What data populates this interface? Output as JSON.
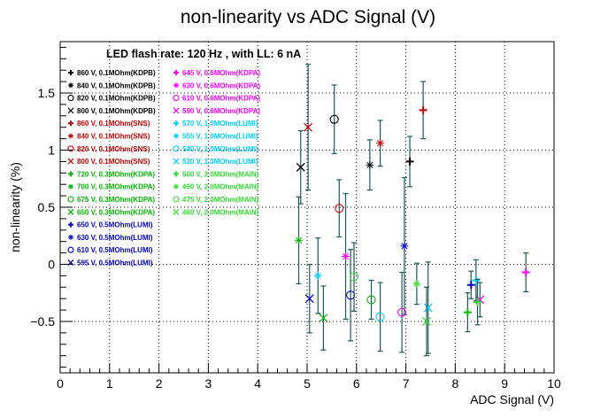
{
  "chart_data": {
    "type": "scatter",
    "title": "non-linearity vs ADC Signal (V)",
    "xlabel": "ADC Signal (V)",
    "ylabel": "non-linearity (%)",
    "xlim": [
      0,
      10
    ],
    "ylim": [
      -0.95,
      1.95
    ],
    "x_ticks": [
      0,
      1,
      2,
      3,
      4,
      5,
      6,
      7,
      8,
      9,
      10
    ],
    "y_ticks": [
      -0.5,
      0,
      0.5,
      1,
      1.5
    ],
    "y_tick_labels": [
      "−0.5",
      "0",
      "0.5",
      "1",
      "1.5"
    ],
    "grid": true,
    "annotation": "LED flash rate: 120 Hz , with LL: 6 nA",
    "legend_placement": "top-left",
    "series": [
      {
        "name": "860 V, 0.1MOhm(KDPB)",
        "marker": "+",
        "color": "#000000",
        "points": [
          {
            "x": 7.08,
            "y": 0.9,
            "err": 0.22
          }
        ]
      },
      {
        "name": "840 V, 0.1MOhm(KDPB)",
        "marker": "*",
        "color": "#000000",
        "points": [
          {
            "x": 6.27,
            "y": 0.87,
            "err": 0.22
          }
        ]
      },
      {
        "name": "820 V, 0.1MOhm(KDPB)",
        "marker": "o",
        "color": "#000000",
        "points": [
          {
            "x": 5.55,
            "y": 1.27,
            "err": 0.3
          }
        ]
      },
      {
        "name": "800 V, 0.1MOhm(KDPB)",
        "marker": "x",
        "color": "#000000",
        "points": [
          {
            "x": 4.87,
            "y": 0.85,
            "err": 0.32
          }
        ]
      },
      {
        "name": "860 V, 0.1MOhm(SNS)",
        "marker": "+",
        "color": "#cc0000",
        "points": [
          {
            "x": 7.35,
            "y": 1.35,
            "err": 0.25
          }
        ]
      },
      {
        "name": "840 V, 0.1MOhm(SNS)",
        "marker": "*",
        "color": "#cc0000",
        "points": [
          {
            "x": 6.48,
            "y": 1.06,
            "err": 0.2
          }
        ]
      },
      {
        "name": "820 V, 0.1MOhm(SNS)",
        "marker": "o",
        "color": "#cc0000",
        "points": [
          {
            "x": 5.65,
            "y": 0.49,
            "err": 0.25
          }
        ]
      },
      {
        "name": "800 V, 0.1MOhm(SNS)",
        "marker": "x",
        "color": "#cc0000",
        "points": [
          {
            "x": 5.02,
            "y": 1.2,
            "err": 0.55
          }
        ]
      },
      {
        "name": "720 V, 0.3MOhm(KDPA)",
        "marker": "+",
        "color": "#00bb00",
        "points": [
          {
            "x": 8.25,
            "y": -0.42,
            "err": 0.17
          }
        ]
      },
      {
        "name": "700 V, 0.3MOhm(KDPA)",
        "marker": "*",
        "color": "#00bb00",
        "points": [
          {
            "x": 4.83,
            "y": 0.21,
            "err": 0.38
          }
        ]
      },
      {
        "name": "675 V, 0.3MOhm(KDPA)",
        "marker": "o",
        "color": "#00bb00",
        "points": [
          {
            "x": 6.3,
            "y": -0.31,
            "err": 0.17
          }
        ]
      },
      {
        "name": "650 V, 0.3MOhm(KDPA)",
        "marker": "x",
        "color": "#00bb00",
        "points": [
          {
            "x": 5.33,
            "y": -0.47,
            "err": 0.28
          }
        ]
      },
      {
        "name": "650 V, 0.5MOhm(LUMI)",
        "marker": "+",
        "color": "#0000cc",
        "points": [
          {
            "x": 8.32,
            "y": -0.18,
            "err": 0.12
          }
        ]
      },
      {
        "name": "630 V, 0.5MOhm(LUMI)",
        "marker": "*",
        "color": "#0000cc",
        "points": [
          {
            "x": 6.97,
            "y": 0.16,
            "err": 0.6
          }
        ]
      },
      {
        "name": "610 V, 0.5MOhm(LUMI)",
        "marker": "o",
        "color": "#0000cc",
        "points": [
          {
            "x": 5.88,
            "y": -0.27,
            "err": 0.4
          }
        ]
      },
      {
        "name": "595 V, 0.5MOhm(LUMI)",
        "marker": "x",
        "color": "#0000cc",
        "points": [
          {
            "x": 5.05,
            "y": -0.3,
            "err": 0.3
          }
        ]
      },
      {
        "name": "645 V, 0.6MOhm(KDPA)",
        "marker": "+",
        "color": "#ff00ff",
        "points": [
          {
            "x": 9.43,
            "y": -0.07,
            "err": 0.17
          }
        ]
      },
      {
        "name": "630 V, 0.6MOhm(KDPA)",
        "marker": "*",
        "color": "#ff00ff",
        "points": [
          {
            "x": 5.78,
            "y": 0.07,
            "err": 0.55
          }
        ]
      },
      {
        "name": "610 V, 0.6MOhm(KDPA)",
        "marker": "o",
        "color": "#ff00ff",
        "points": [
          {
            "x": 6.92,
            "y": -0.42,
            "err": 0.35
          }
        ]
      },
      {
        "name": "590 V, 0.6MOhm(KDPA)",
        "marker": "x",
        "color": "#ff00ff",
        "points": [
          {
            "x": 8.5,
            "y": -0.31,
            "err": 0.15
          }
        ]
      },
      {
        "name": "570 V, 1.0MOhm(LUMI)",
        "marker": "+",
        "color": "#00d0ff",
        "points": [
          {
            "x": 8.42,
            "y": -0.14,
            "err": 0.18
          }
        ]
      },
      {
        "name": "555 V, 1.0MOhm(LUMI)",
        "marker": "*",
        "color": "#00d0ff",
        "points": [
          {
            "x": 5.22,
            "y": -0.1,
            "err": 0.33
          }
        ]
      },
      {
        "name": "540 V, 1.0MOhm(LUMI)",
        "marker": "o",
        "color": "#00d0ff",
        "points": [
          {
            "x": 6.48,
            "y": -0.46,
            "err": 0.3
          }
        ]
      },
      {
        "name": "520 V, 1.0MOhm(LUMI)",
        "marker": "x",
        "color": "#00d0ff",
        "points": [
          {
            "x": 7.45,
            "y": -0.38,
            "err": 0.4
          }
        ]
      },
      {
        "name": "500 V, 2.0MOhm(MAIN)",
        "marker": "+",
        "color": "#33dd33",
        "points": [
          {
            "x": 8.45,
            "y": -0.33,
            "err": 0.2
          }
        ]
      },
      {
        "name": "490 V, 2.0MOhm(MAIN)",
        "marker": "*",
        "color": "#33dd33",
        "points": [
          {
            "x": 7.22,
            "y": -0.17,
            "err": 0.18
          }
        ]
      },
      {
        "name": "475 V, 2.0MOhm(MAIN)",
        "marker": "o",
        "color": "#33dd33",
        "points": [
          {
            "x": 5.95,
            "y": -0.11,
            "err": 0.3
          }
        ]
      },
      {
        "name": "460 V, 2.0MOhm(MAIN)",
        "marker": "x",
        "color": "#33dd33",
        "points": [
          {
            "x": 7.42,
            "y": -0.5,
            "err": 0.3
          }
        ]
      }
    ]
  }
}
